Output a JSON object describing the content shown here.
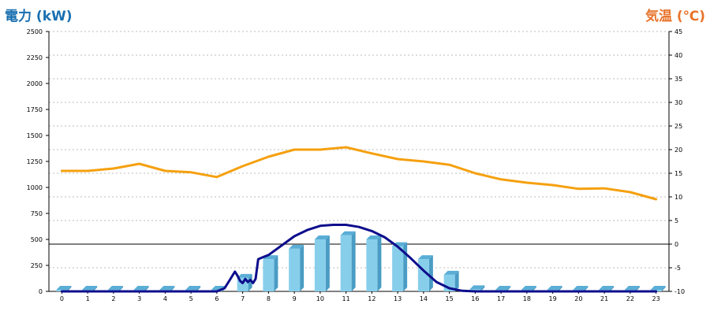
{
  "colors": {
    "power_title": "#1a6fb0",
    "temp_title": "#e8732a",
    "bar_face": "#87ceeb",
    "bar_side": "#4a9cc4",
    "bar_top": "#5aaed6",
    "power_line": "#0d0d8c",
    "temp_line": "#f5a00f",
    "grid": "#bbbbbb",
    "axis": "#000000"
  },
  "chart_data": {
    "type": "bar",
    "title_left": "電力 (kW)",
    "title_right": "気温 (℃)",
    "categories": [
      "0",
      "1",
      "2",
      "3",
      "4",
      "5",
      "6",
      "7",
      "8",
      "9",
      "10",
      "11",
      "12",
      "13",
      "14",
      "15",
      "16",
      "17",
      "18",
      "19",
      "20",
      "21",
      "22",
      "23"
    ],
    "y_left": {
      "ylim": [
        0,
        2500
      ],
      "ticks": [
        "0",
        "250",
        "500",
        "750",
        "1000",
        "1250",
        "1500",
        "1750",
        "2000",
        "2250",
        "2500"
      ]
    },
    "y_right": {
      "ylim": [
        -10,
        45
      ],
      "ticks": [
        "-10",
        "-5",
        "0",
        "5",
        "10",
        "15",
        "20",
        "25",
        "30",
        "35",
        "40",
        "45"
      ]
    },
    "grid": true,
    "series": [
      {
        "kind": "bar",
        "axis": "left",
        "values": [
          0,
          0,
          0,
          0,
          0,
          0,
          0,
          130,
          310,
          410,
          500,
          540,
          500,
          435,
          310,
          160,
          20,
          0,
          0,
          0,
          0,
          0,
          0,
          0
        ]
      },
      {
        "kind": "line",
        "axis": "left",
        "color_key": "power_line",
        "x": [
          0,
          1,
          2,
          3,
          4,
          5,
          6,
          6.3,
          6.5,
          6.7,
          6.8,
          6.9,
          7.0,
          7.1,
          7.2,
          7.3,
          7.4,
          7.5,
          7.6,
          7.8,
          8,
          8.5,
          9,
          9.5,
          10,
          10.5,
          11,
          11.5,
          12,
          12.5,
          13,
          13.5,
          14,
          14.5,
          15,
          15.5,
          16,
          17,
          18,
          19,
          20,
          21,
          22,
          23
        ],
        "values": [
          0,
          0,
          0,
          0,
          0,
          0,
          0,
          30,
          110,
          190,
          150,
          100,
          80,
          120,
          90,
          110,
          80,
          120,
          310,
          330,
          350,
          440,
          530,
          590,
          630,
          640,
          640,
          620,
          580,
          520,
          430,
          320,
          200,
          90,
          30,
          5,
          0,
          0,
          0,
          0,
          0,
          0,
          0,
          0
        ]
      },
      {
        "kind": "line",
        "axis": "right",
        "color_key": "temp_line",
        "x": [
          0,
          1,
          2,
          3,
          4,
          5,
          6,
          7,
          8,
          9,
          10,
          11,
          12,
          13,
          14,
          15,
          16,
          17,
          18,
          19,
          20,
          21,
          22,
          23
        ],
        "values": [
          15.5,
          15.5,
          16,
          17,
          15.5,
          15.2,
          14.2,
          16.5,
          18.5,
          20,
          20,
          20.5,
          19.2,
          18,
          17.5,
          16.8,
          15,
          13.7,
          13,
          12.5,
          11.7,
          11.8,
          11,
          9.5
        ]
      }
    ]
  }
}
